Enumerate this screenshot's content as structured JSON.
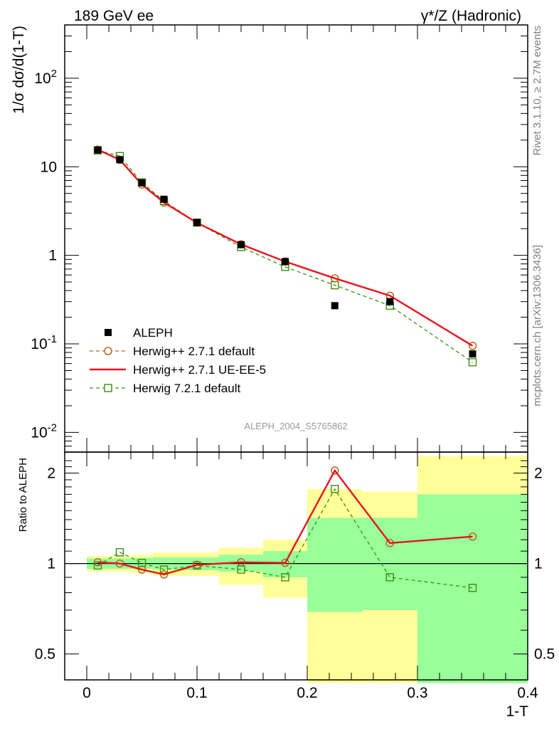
{
  "header": {
    "left": "189 GeV ee",
    "right": "γ*/Z (Hadronic)"
  },
  "side_text": {
    "rivet": "Rivet 3.1.10, ≥ 2.7M events",
    "mcplots": "mcplots.cern.ch [arXiv:1306.3436]"
  },
  "analysis_label": "ALEPH_2004_S5765862",
  "chart_data": [
    {
      "type": "line",
      "ylabel": "1/σ  dσ/d(1-T)",
      "yscale": "log",
      "ylim": [
        0.006,
        400
      ],
      "xlim": [
        -0.02,
        0.4
      ],
      "yticks": [
        {
          "value": 0.01,
          "base": "10",
          "exp": "-2"
        },
        {
          "value": 0.1,
          "base": "10",
          "exp": "-1"
        },
        {
          "value": 1,
          "base": "1",
          "exp": ""
        },
        {
          "value": 10,
          "base": "10",
          "exp": ""
        },
        {
          "value": 100,
          "base": "10",
          "exp": "2"
        }
      ],
      "legend_position": "lower-left",
      "series": [
        {
          "name": "ALEPH",
          "color": "#000000",
          "style": "markers",
          "marker": "filled-square",
          "x": [
            0.01,
            0.03,
            0.05,
            0.07,
            0.1,
            0.14,
            0.18,
            0.225,
            0.275,
            0.35
          ],
          "y": [
            15.5,
            12.0,
            6.6,
            4.3,
            2.35,
            1.32,
            0.85,
            0.27,
            0.3,
            0.077
          ]
        },
        {
          "name": "Herwig++ 2.7.1 default",
          "color": "#b5651d",
          "style": "dashed",
          "marker": "open-circle",
          "x": [
            0.01,
            0.03,
            0.05,
            0.07,
            0.1,
            0.14,
            0.18,
            0.225,
            0.275,
            0.35
          ],
          "y": [
            15.6,
            12.0,
            6.3,
            3.95,
            2.33,
            1.33,
            0.85,
            0.55,
            0.35,
            0.095
          ]
        },
        {
          "name": "Herwig++ 2.7.1 UE-EE-5",
          "color": "#e8141e",
          "style": "solid",
          "marker": "none",
          "x": [
            0.01,
            0.03,
            0.05,
            0.07,
            0.1,
            0.14,
            0.18,
            0.225,
            0.275,
            0.35
          ],
          "y": [
            15.6,
            12.0,
            6.3,
            3.95,
            2.33,
            1.33,
            0.85,
            0.55,
            0.35,
            0.095
          ]
        },
        {
          "name": "Herwig 7.2.1 default",
          "color": "#3a8f10",
          "style": "dashed",
          "marker": "open-square",
          "x": [
            0.01,
            0.03,
            0.05,
            0.07,
            0.1,
            0.14,
            0.18,
            0.225,
            0.275,
            0.35
          ],
          "y": [
            15.3,
            13.2,
            6.65,
            4.1,
            2.34,
            1.24,
            0.74,
            0.46,
            0.27,
            0.062
          ]
        }
      ]
    },
    {
      "type": "line",
      "ylabel": "Ratio to ALEPH",
      "xlabel": "1-T",
      "yscale": "log",
      "ylim": [
        0.41,
        2.35
      ],
      "xlim": [
        -0.02,
        0.4
      ],
      "yticks": [
        0.5,
        1,
        2
      ],
      "xticks": [
        0,
        0.1,
        0.2,
        0.3,
        0.4
      ],
      "reference_line": 1,
      "uncertainty_bands": [
        {
          "x0": 0.0,
          "x1": 0.02,
          "stat_lo": 0.96,
          "stat_hi": 1.04,
          "tot_lo": 0.94,
          "tot_hi": 1.06
        },
        {
          "x0": 0.02,
          "x1": 0.04,
          "stat_lo": 0.96,
          "stat_hi": 1.04,
          "tot_lo": 0.94,
          "tot_hi": 1.06
        },
        {
          "x0": 0.04,
          "x1": 0.06,
          "stat_lo": 0.96,
          "stat_hi": 1.045,
          "tot_lo": 0.93,
          "tot_hi": 1.07
        },
        {
          "x0": 0.06,
          "x1": 0.08,
          "stat_lo": 0.955,
          "stat_hi": 1.05,
          "tot_lo": 0.91,
          "tot_hi": 1.09
        },
        {
          "x0": 0.08,
          "x1": 0.12,
          "stat_lo": 0.95,
          "stat_hi": 1.05,
          "tot_lo": 0.91,
          "tot_hi": 1.09
        },
        {
          "x0": 0.12,
          "x1": 0.16,
          "stat_lo": 0.94,
          "stat_hi": 1.07,
          "tot_lo": 0.85,
          "tot_hi": 1.13
        },
        {
          "x0": 0.16,
          "x1": 0.2,
          "stat_lo": 0.9,
          "stat_hi": 1.1,
          "tot_lo": 0.77,
          "tot_hi": 1.2
        },
        {
          "x0": 0.2,
          "x1": 0.25,
          "stat_lo": 0.69,
          "stat_hi": 1.42,
          "tot_lo": 0.4,
          "tot_hi": 1.77
        },
        {
          "x0": 0.25,
          "x1": 0.3,
          "stat_lo": 0.7,
          "stat_hi": 1.42,
          "tot_lo": 0.4,
          "tot_hi": 1.73
        },
        {
          "x0": 0.3,
          "x1": 0.4,
          "stat_lo": 0.4,
          "stat_hi": 1.7,
          "tot_lo": 0.4,
          "tot_hi": 2.28
        }
      ],
      "band_colors": {
        "stat": "#99ff99",
        "total": "#ffff99"
      },
      "series": [
        {
          "name": "Herwig++ 2.7.1 default",
          "color": "#b5651d",
          "style": "none",
          "marker": "open-circle",
          "x": [
            0.01,
            0.03,
            0.05,
            0.07,
            0.1,
            0.14,
            0.18,
            0.225,
            0.275,
            0.35
          ],
          "y": [
            1.01,
            1.0,
            0.955,
            0.92,
            0.99,
            1.01,
            1.005,
            2.04,
            1.17,
            1.23
          ]
        },
        {
          "name": "Herwig++ 2.7.1 UE-EE-5",
          "color": "#e8141e",
          "style": "solid",
          "marker": "none",
          "x": [
            0.01,
            0.03,
            0.05,
            0.07,
            0.1,
            0.14,
            0.18,
            0.225,
            0.275,
            0.35
          ],
          "y": [
            1.01,
            1.0,
            0.955,
            0.92,
            0.99,
            1.01,
            1.005,
            2.04,
            1.17,
            1.23
          ]
        },
        {
          "name": "Herwig 7.2.1 default",
          "color": "#3a8f10",
          "style": "dashed",
          "marker": "open-square",
          "x": [
            0.01,
            0.03,
            0.05,
            0.07,
            0.1,
            0.14,
            0.18,
            0.225,
            0.275,
            0.35
          ],
          "y": [
            0.985,
            1.09,
            1.005,
            0.955,
            0.985,
            0.955,
            0.9,
            1.77,
            0.9,
            0.83
          ]
        }
      ]
    }
  ]
}
